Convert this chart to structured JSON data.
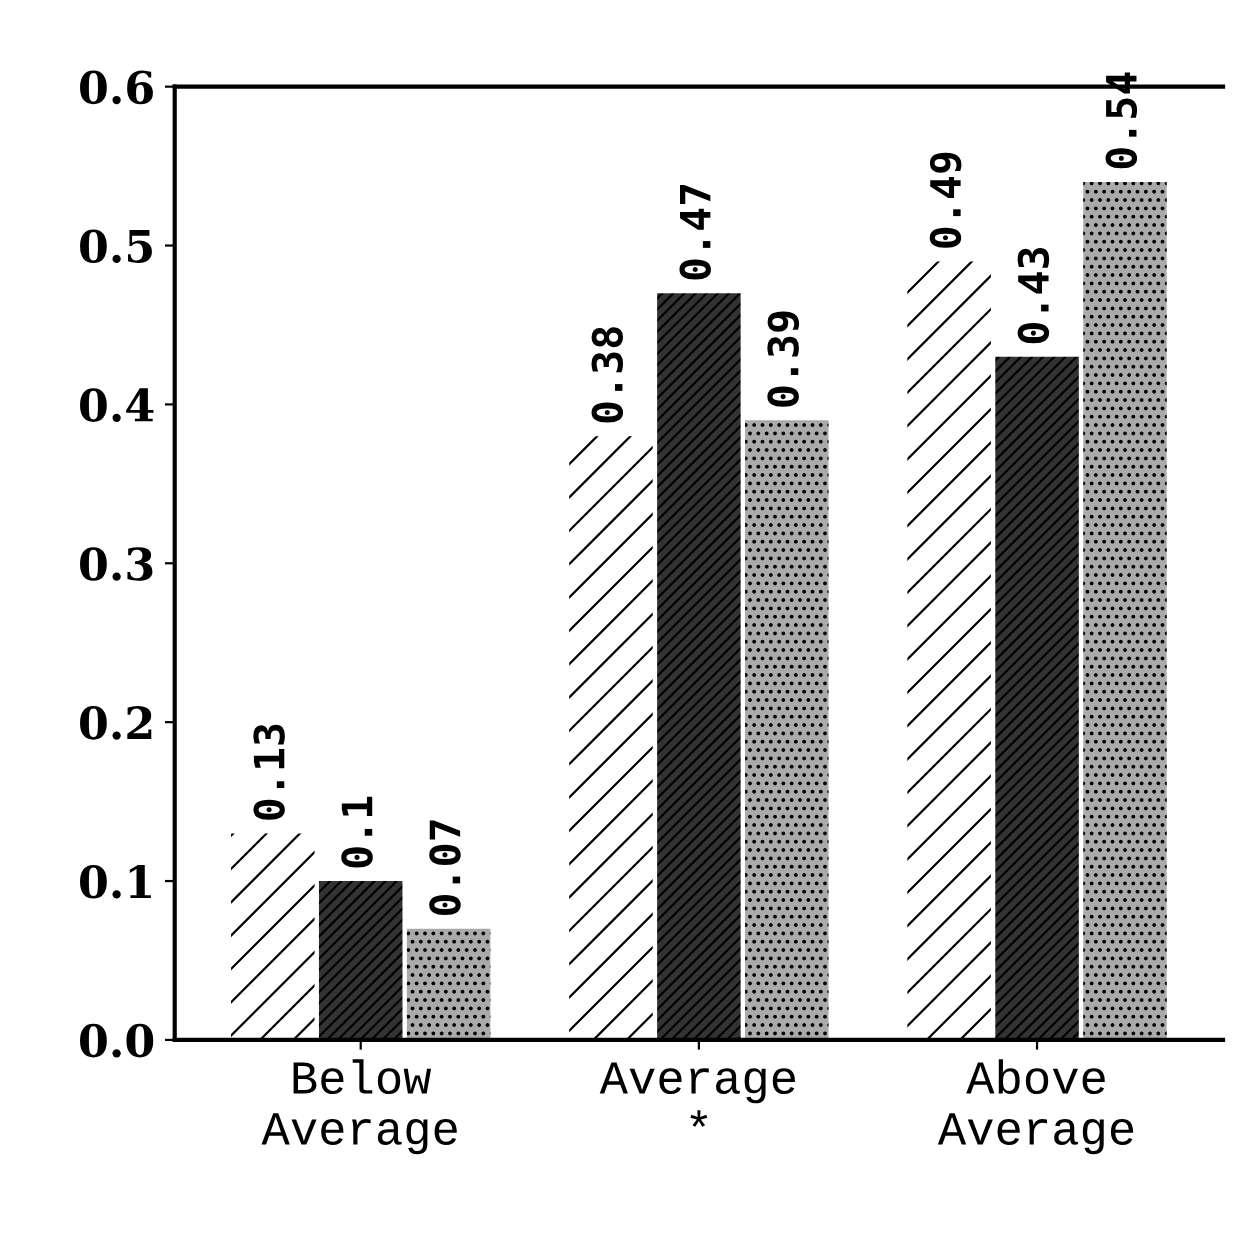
{
  "chart_data": {
    "type": "bar",
    "categories": [
      "Below\nAverage",
      "Average\n*",
      "Above\nAverage"
    ],
    "series": [
      {
        "color": "#ffffff",
        "values": [
          0.13,
          0.38,
          0.49
        ]
      },
      {
        "color": "#333333",
        "values": [
          0.1,
          0.47,
          0.43
        ]
      },
      {
        "color": "#aaaaaa",
        "values": [
          0.07,
          0.39,
          0.54
        ]
      }
    ],
    "ylim": [
      0,
      0.6
    ],
    "yticks": [
      {
        "value": 0,
        "label": "0.0"
      },
      0.1,
      0.2,
      0.3,
      0.4,
      0.5,
      0.6
    ],
    "data_labels": true,
    "grid": false,
    "legend": false
  }
}
